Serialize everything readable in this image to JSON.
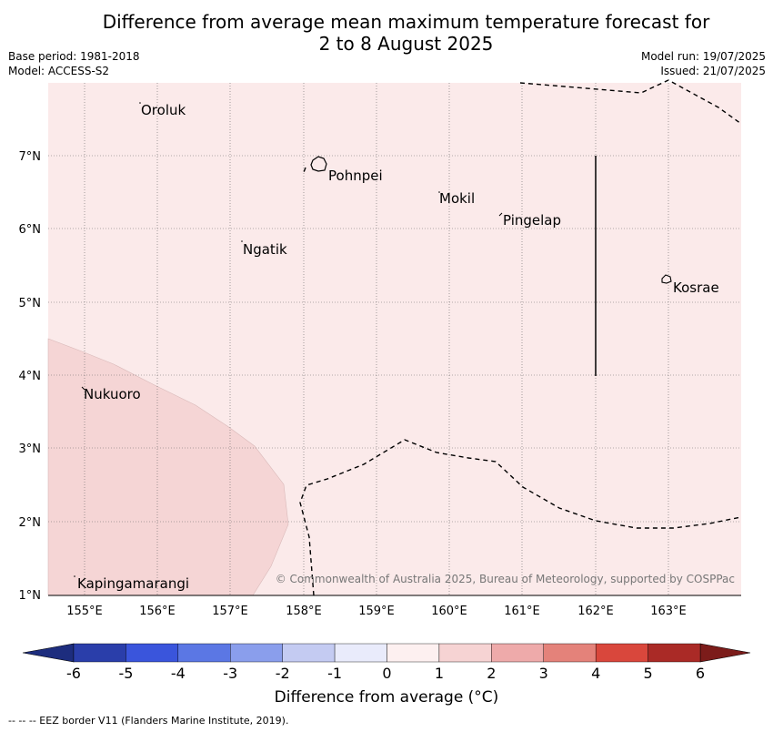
{
  "title": {
    "line1": "Difference from average mean maximum temperature forecast for",
    "line2": "2 to 8 August 2025"
  },
  "meta": {
    "base_period": "Base period: 1981-2018",
    "model": "Model: ACCESS-S2",
    "model_run": "Model run: 19/07/2025",
    "issued": "Issued: 21/07/2025"
  },
  "map": {
    "lon_ticks": [
      "155°E",
      "156°E",
      "157°E",
      "158°E",
      "159°E",
      "160°E",
      "161°E",
      "162°E",
      "163°E"
    ],
    "lat_ticks": [
      "7°N",
      "6°N",
      "5°N",
      "4°N",
      "3°N",
      "2°N",
      "1°N"
    ],
    "places": [
      "Oroluk",
      "Pohnpei",
      "Mokil",
      "Pingelap",
      "Ngatik",
      "Kosrae",
      "Nukuoro",
      "Kapingamarangi"
    ],
    "copyright": "© Commonwealth of Australia 2025, Bureau of Meteorology, supported by COSPPac",
    "background_color": "#fbeaea",
    "anomaly_color": "#f5d5d5"
  },
  "colorbar": {
    "ticks": [
      "-6",
      "-5",
      "-4",
      "-3",
      "-2",
      "-1",
      "0",
      "1",
      "2",
      "3",
      "4",
      "5",
      "6"
    ],
    "colors": [
      "#2a3eaa",
      "#3a55dc",
      "#5b77e4",
      "#8a9eec",
      "#c4cbf2",
      "#e9ebfb",
      "#fdf0f0",
      "#f6d3d3",
      "#eeaaaa",
      "#e4827a",
      "#d9473c",
      "#aa2a26"
    ],
    "under_color": "#1d2d7e",
    "over_color": "#7c1c1a",
    "label": "Difference from average (°C)"
  },
  "footnote": "--  --  -- EEZ border V11 (Flanders Marine Institute, 2019)."
}
